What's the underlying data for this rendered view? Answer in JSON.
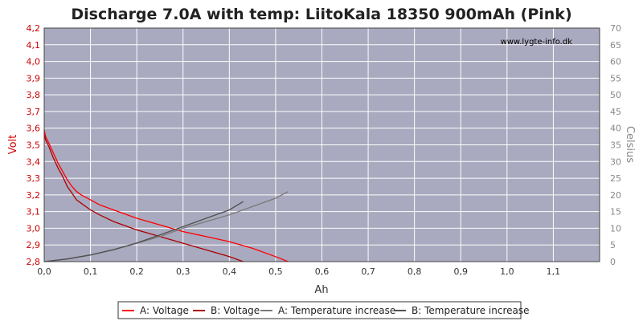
{
  "chart_data": {
    "type": "line",
    "title": "Discharge 7.0A with temp: LiitoKala  18350 900mAh (Pink)",
    "watermark": "www.lygte-info.dk",
    "xlabel": "Ah",
    "ylabel_left": "Volt",
    "ylabel_right": "Celsius",
    "xlim": [
      0,
      1.2
    ],
    "ylim_left": [
      2.8,
      4.2
    ],
    "ylim_right": [
      0,
      70
    ],
    "x_ticks": [
      "0,0",
      "0,1",
      "0,2",
      "0,3",
      "0,4",
      "0,5",
      "0,6",
      "0,7",
      "0,8",
      "0,9",
      "1,0",
      "1,1"
    ],
    "y_left_ticks": [
      "2,8",
      "2,9",
      "3,0",
      "3,1",
      "3,2",
      "3,3",
      "3,4",
      "3,5",
      "3,6",
      "3,7",
      "3,8",
      "3,9",
      "4,0",
      "4,1",
      "4,2"
    ],
    "y_right_ticks": [
      "0",
      "5",
      "10",
      "15",
      "20",
      "25",
      "30",
      "35",
      "40",
      "45",
      "50",
      "55",
      "60",
      "65",
      "70"
    ],
    "grid": true,
    "legend_position": "bottom",
    "colors": {
      "plot_bg": "#a9a9bf",
      "grid": "#ffffff",
      "voltage_a": "#ff0000",
      "voltage_b": "#aa0000",
      "temp_a": "#7a7a7a",
      "temp_b": "#505050",
      "left_axis": "#cc0000",
      "right_axis": "#888888"
    },
    "series": [
      {
        "name": "A: Voltage",
        "axis": "left",
        "color_key": "voltage_a",
        "x": [
          0,
          0.003,
          0.01,
          0.02,
          0.03,
          0.04,
          0.05,
          0.06,
          0.07,
          0.08,
          0.1,
          0.12,
          0.15,
          0.2,
          0.25,
          0.3,
          0.35,
          0.4,
          0.45,
          0.5,
          0.527
        ],
        "y": [
          3.59,
          3.55,
          3.51,
          3.45,
          3.39,
          3.34,
          3.29,
          3.25,
          3.22,
          3.2,
          3.17,
          3.14,
          3.11,
          3.06,
          3.02,
          2.98,
          2.95,
          2.92,
          2.88,
          2.83,
          2.8
        ]
      },
      {
        "name": "B: Voltage",
        "axis": "left",
        "color_key": "voltage_b",
        "x": [
          0,
          0.003,
          0.01,
          0.02,
          0.03,
          0.04,
          0.05,
          0.06,
          0.07,
          0.08,
          0.1,
          0.12,
          0.15,
          0.2,
          0.25,
          0.3,
          0.35,
          0.4,
          0.43
        ],
        "y": [
          3.57,
          3.53,
          3.49,
          3.42,
          3.36,
          3.31,
          3.25,
          3.21,
          3.17,
          3.15,
          3.11,
          3.08,
          3.04,
          2.99,
          2.95,
          2.91,
          2.87,
          2.83,
          2.8
        ]
      },
      {
        "name": "A: Temperature increase",
        "axis": "right",
        "color_key": "temp_a",
        "x": [
          0,
          0.05,
          0.1,
          0.15,
          0.2,
          0.25,
          0.3,
          0.35,
          0.4,
          0.45,
          0.5,
          0.527
        ],
        "y": [
          0,
          0.8,
          2,
          3.5,
          5.5,
          7.5,
          10,
          12,
          14,
          16.5,
          19,
          21
        ]
      },
      {
        "name": "B: Temperature increase",
        "axis": "right",
        "color_key": "temp_b",
        "x": [
          0,
          0.05,
          0.1,
          0.15,
          0.2,
          0.25,
          0.3,
          0.35,
          0.4,
          0.43
        ],
        "y": [
          0,
          0.8,
          2,
          3.6,
          5.6,
          8,
          10.5,
          13,
          15.5,
          18
        ]
      }
    ]
  }
}
